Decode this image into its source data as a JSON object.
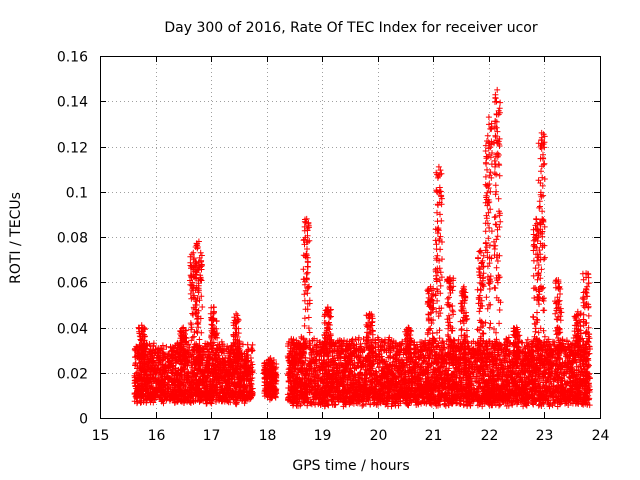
{
  "chart_data": {
    "type": "scatter",
    "title": "Day 300 of 2016, Rate Of TEC Index for receiver ucor",
    "xlabel": "GPS time / hours",
    "ylabel": "ROTI / TECUs",
    "xlim": [
      15,
      24
    ],
    "ylim": [
      0,
      0.16
    ],
    "xticks": [
      15,
      16,
      17,
      18,
      19,
      20,
      21,
      22,
      23,
      24
    ],
    "yticks": [
      0,
      0.02,
      0.04,
      0.06,
      0.08,
      0.1,
      0.12,
      0.14,
      0.16
    ],
    "ytick_labels": [
      "0",
      "0.02",
      "0.04",
      "0.06",
      "0.08",
      "0.1",
      "0.12",
      "0.14",
      "0.16"
    ],
    "grid": true,
    "marker": "+",
    "series": [
      {
        "name": "ROTI",
        "color": "#ff0000",
        "segments": [
          {
            "x_start": 15.62,
            "x_end": 17.75,
            "base_min": 0.008,
            "base_max": 0.032
          },
          {
            "x_start": 17.95,
            "x_end": 18.18,
            "base_min": 0.01,
            "base_max": 0.025
          },
          {
            "x_start": 18.38,
            "x_end": 23.82,
            "base_min": 0.007,
            "base_max": 0.034
          }
        ],
        "bursts": [
          {
            "x": 15.75,
            "y_max": 0.041
          },
          {
            "x": 16.5,
            "y_max": 0.04
          },
          {
            "x": 16.68,
            "y_max": 0.073
          },
          {
            "x": 16.78,
            "y_max": 0.078
          },
          {
            "x": 17.05,
            "y_max": 0.049
          },
          {
            "x": 17.45,
            "y_max": 0.046
          },
          {
            "x": 18.72,
            "y_max": 0.088
          },
          {
            "x": 19.1,
            "y_max": 0.049
          },
          {
            "x": 19.85,
            "y_max": 0.046
          },
          {
            "x": 20.55,
            "y_max": 0.04
          },
          {
            "x": 20.95,
            "y_max": 0.058
          },
          {
            "x": 21.1,
            "y_max": 0.111
          },
          {
            "x": 21.3,
            "y_max": 0.062
          },
          {
            "x": 21.55,
            "y_max": 0.058
          },
          {
            "x": 21.85,
            "y_max": 0.074
          },
          {
            "x": 22.0,
            "y_max": 0.133
          },
          {
            "x": 22.15,
            "y_max": 0.145
          },
          {
            "x": 22.5,
            "y_max": 0.04
          },
          {
            "x": 22.85,
            "y_max": 0.088
          },
          {
            "x": 22.95,
            "y_max": 0.126
          },
          {
            "x": 23.25,
            "y_max": 0.061
          },
          {
            "x": 23.6,
            "y_max": 0.047
          },
          {
            "x": 23.75,
            "y_max": 0.064
          }
        ]
      }
    ]
  }
}
